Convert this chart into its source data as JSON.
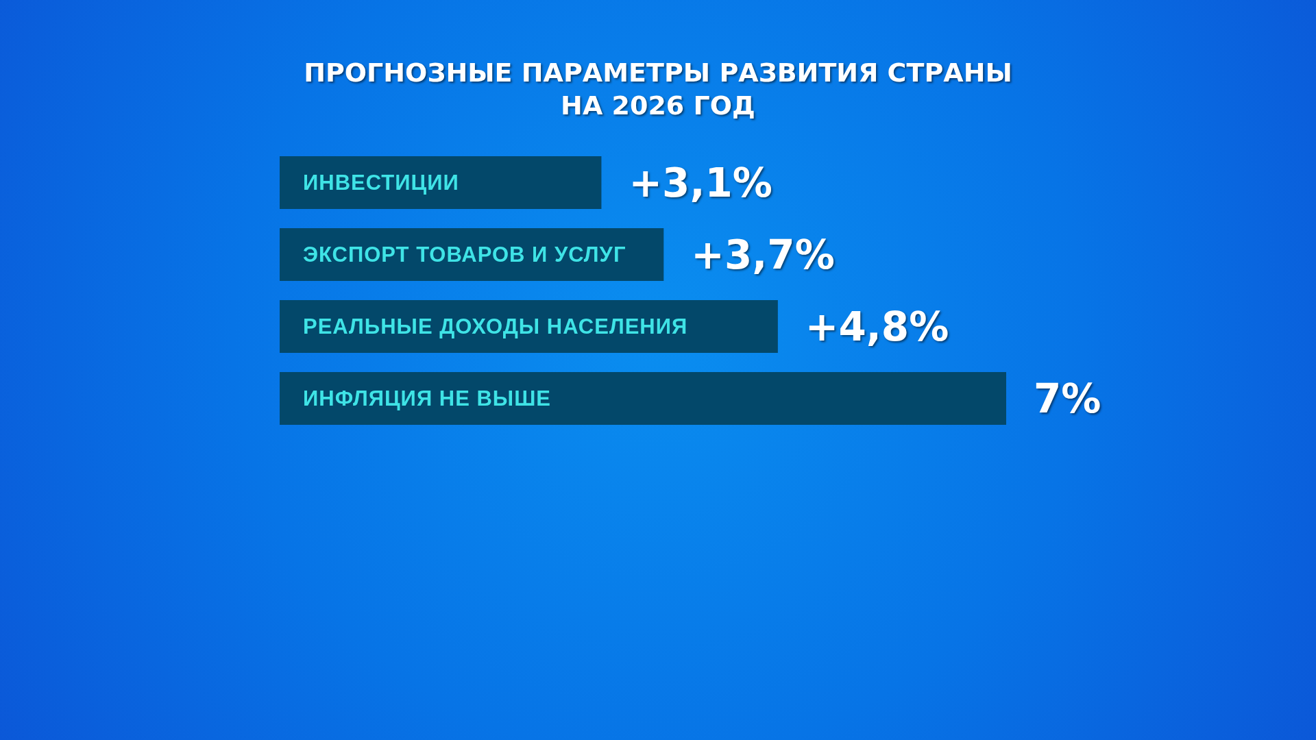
{
  "chart_data": {
    "type": "bar",
    "orientation": "horizontal",
    "title": "ПРОГНОЗНЫЕ ПАРАМЕТРЫ РАЗВИТИЯ СТРАНЫ\nНА 2026 ГОД",
    "categories": [
      "ИНВЕСТИЦИИ",
      "ЭКСПОРТ ТОВАРОВ И УСЛУГ",
      "РЕАЛЬНЫЕ ДОХОДЫ НАСЕЛЕНИЯ",
      "ИНФЛЯЦИЯ НЕ ВЫШЕ"
    ],
    "values": [
      3.1,
      3.7,
      4.8,
      7
    ],
    "value_labels": [
      "+3,1%",
      "+3,7%",
      "+4,8%",
      "7%"
    ],
    "color": "#03486a"
  }
}
